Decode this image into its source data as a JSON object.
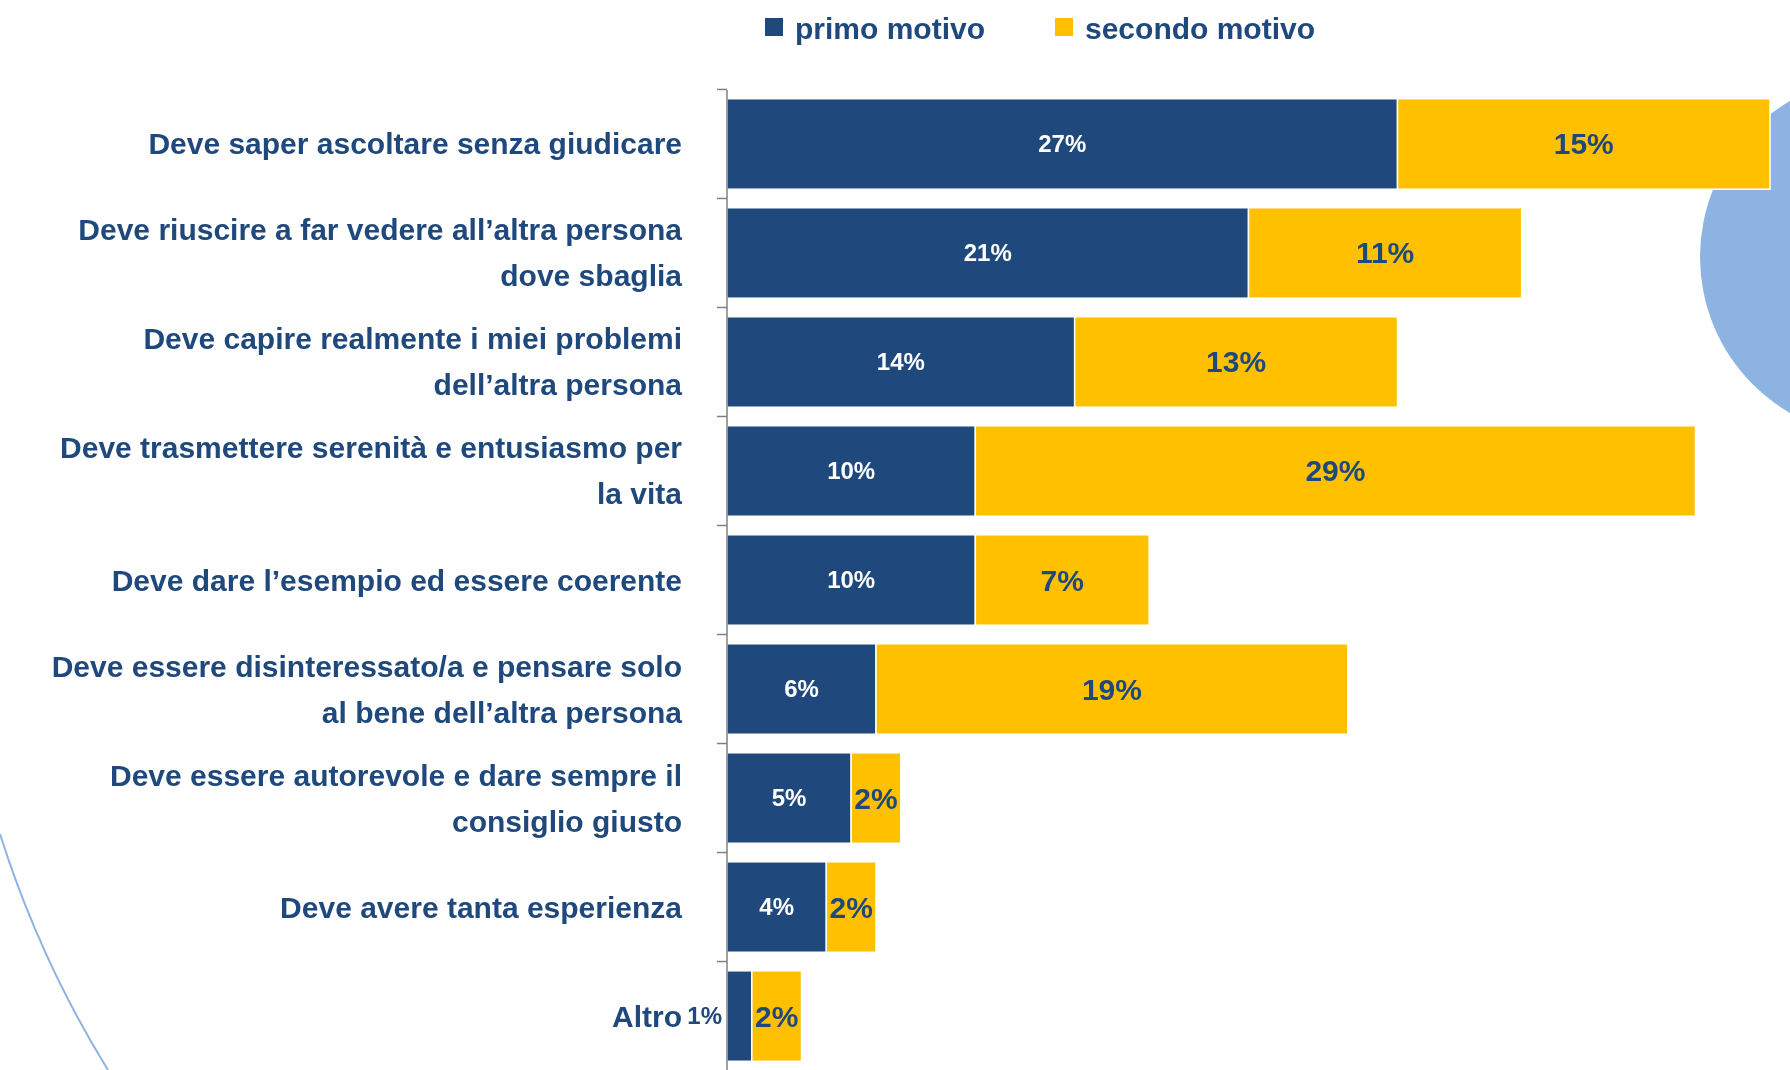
{
  "chart_data": {
    "type": "bar",
    "orientation": "horizontal",
    "stacked": true,
    "legend": "top",
    "relative": false,
    "categories": [
      "Deve saper ascoltare senza giudicare",
      "Deve riuscire a far vedere all’altra persona\ndove sbaglia",
      "Deve capire realmente i miei problemi\ndell’altra persona",
      "Deve trasmettere serenità e entusiasmo per\nla vita",
      "Deve dare l’esempio ed essere coerente",
      "Deve essere disinteressato/a e pensare solo\nal bene dell’altra persona",
      "Deve essere autorevole e dare sempre il\nconsiglio giusto",
      "Deve avere tanta esperienza",
      "Altro"
    ],
    "series": [
      {
        "name": "primo motivo",
        "color": "#1f497d",
        "values": [
          27,
          21,
          14,
          10,
          10,
          6,
          5,
          4,
          1
        ],
        "value_labels": [
          "27%",
          "21%",
          "14%",
          "10%",
          "10%",
          "6%",
          "5%",
          "4%",
          "1%"
        ]
      },
      {
        "name": "secondo motivo",
        "color": "#ffc000",
        "values": [
          15,
          11,
          13,
          29,
          7,
          19,
          2,
          2,
          2
        ],
        "value_labels": [
          "15%",
          "11%",
          "13%",
          "29%",
          "7%",
          "19%",
          "2%",
          "2%",
          "2%"
        ]
      }
    ]
  }
}
